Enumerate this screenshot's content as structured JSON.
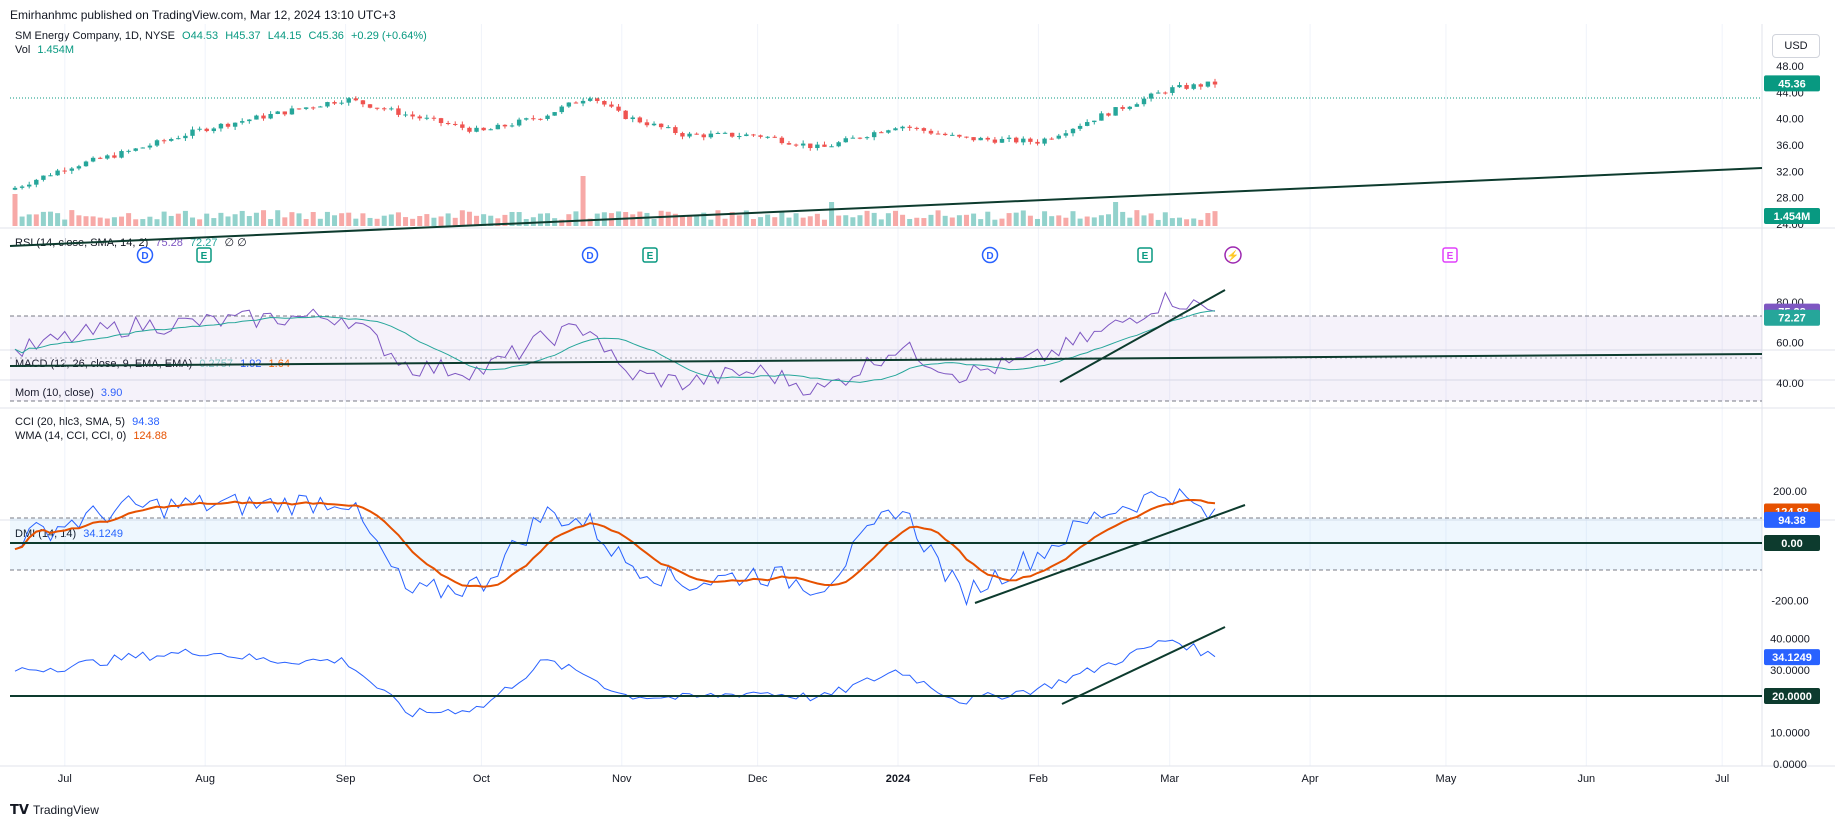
{
  "publish_line": "Emirhanhmc published on TradingView.com, Mar 12, 2024 13:10 UTC+3",
  "currency_button": "USD",
  "footer_brand": "TradingView",
  "main_legend": {
    "symbol": "SM Energy Company, 1D, NYSE",
    "open": "O44.53",
    "high": "H45.37",
    "low": "L44.15",
    "close": "C45.36",
    "change": "+0.29 (+0.64%)",
    "vol_label": "Vol",
    "vol_value": "1.454M"
  },
  "rsi_legend": {
    "label": "RSI (14, close, SMA, 14, 2)",
    "v1": "75.28",
    "v2": "72.27",
    "v3": "∅ ∅"
  },
  "macd_legend": {
    "label": "MACD (12, 26, close, 9, EMA, EMA)",
    "v1": "0.2757",
    "v2": "1.92",
    "v3": "1.64"
  },
  "mom_legend": {
    "label": "Mom (10, close)",
    "v1": "3.90"
  },
  "cci_legend": {
    "label": "CCI (20, hlc3, SMA, 5)",
    "v1": "94.38",
    "label2": "WMA (14, CCI, CCI, 0)",
    "v2": "124.88"
  },
  "dmi_legend": {
    "label": "DMI (14, 14)",
    "v1": "34.1249"
  },
  "price_axis": [
    "48.00",
    "44.00",
    "40.00",
    "36.00",
    "32.00",
    "28.00",
    "24.00"
  ],
  "rsi_axis": [
    "80.00",
    "60.00",
    "40.00"
  ],
  "cci_axis": [
    "200.00",
    "-200.00"
  ],
  "dmi_axis": [
    "40.0000",
    "30.0000",
    "10.0000",
    "0.0000"
  ],
  "badges": {
    "price": "45.36",
    "volume": "1.454M",
    "rsi1": "75.28",
    "rsi2": "72.27",
    "cci1": "124.88",
    "cci2": "94.38",
    "cci_zero": "0.00",
    "dmi1": "34.1249",
    "dmi_ref": "20.0000"
  },
  "time_axis": [
    "Jul",
    "Aug",
    "Sep",
    "Oct",
    "Nov",
    "Dec",
    "2024",
    "Feb",
    "Mar",
    "Apr",
    "May",
    "Jun",
    "Jul"
  ],
  "event_markers": [
    "D",
    "E",
    "D",
    "E",
    "D",
    "E",
    "E"
  ],
  "colors": {
    "up": "#26a69a",
    "down": "#ef5350",
    "rsi": "#7e57c2",
    "rsi_ma": "#26a69a",
    "cci": "#2962ff",
    "cci_ma": "#e65100",
    "dmi": "#2962ff",
    "trend": "#0d3b2e",
    "price_badge": "#089981",
    "rsi_badge1": "#7e57c2",
    "rsi_badge2": "#26a69a",
    "cci_badge1": "#e65100",
    "cci_badge2": "#2962ff",
    "dark_badge": "#0d3b2e"
  },
  "chart_data": {
    "type": "line",
    "x": [
      "2023-06-20",
      "2023-07-01",
      "2023-07-15",
      "2023-08-01",
      "2023-08-15",
      "2023-09-01",
      "2023-09-15",
      "2023-10-01",
      "2023-10-15",
      "2023-10-25",
      "2023-11-01",
      "2023-11-15",
      "2023-12-01",
      "2023-12-15",
      "2024-01-01",
      "2024-01-15",
      "2024-02-01",
      "2024-02-15",
      "2024-03-01",
      "2024-03-11"
    ],
    "series": [
      {
        "name": "Close",
        "values": [
          29.5,
          32.5,
          35.0,
          38.5,
          40.5,
          43.0,
          40.5,
          38.0,
          40.5,
          43.5,
          40.5,
          37.5,
          37.5,
          35.5,
          39.0,
          37.0,
          36.5,
          40.5,
          44.5,
          45.36
        ]
      },
      {
        "name": "RSI",
        "values": [
          55,
          62,
          68,
          70,
          72,
          73,
          48,
          46,
          62,
          68,
          45,
          40,
          46,
          36,
          58,
          44,
          52,
          65,
          82,
          75.28
        ]
      },
      {
        "name": "CCI",
        "values": [
          20,
          80,
          140,
          150,
          150,
          170,
          -180,
          -140,
          120,
          80,
          -50,
          -140,
          -100,
          -150,
          150,
          -180,
          -30,
          120,
          200,
          94.38
        ]
      },
      {
        "name": "DMI",
        "values": [
          30,
          31,
          34,
          36,
          33,
          33,
          16,
          18,
          33,
          28,
          22,
          21,
          23,
          21,
          30,
          20,
          24,
          31,
          40,
          34.1249
        ]
      }
    ],
    "ylim_price": [
      24,
      48
    ],
    "ylim_rsi": [
      30,
      85
    ],
    "ylim_cci": [
      -250,
      240
    ],
    "ylim_dmi": [
      0,
      45
    ],
    "last_values": {
      "close": 45.36,
      "volume": "1.454M",
      "rsi": 75.28,
      "rsi_ma": 72.27,
      "cci": 94.38,
      "cci_ma": 124.88,
      "dmi": 34.1249
    }
  }
}
